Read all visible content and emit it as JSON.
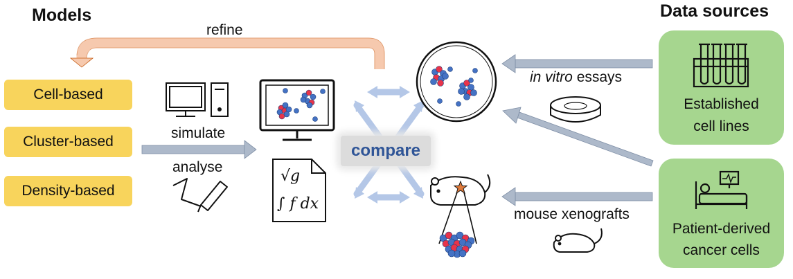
{
  "models": {
    "heading": "Models",
    "items": [
      "Cell-based",
      "Cluster-based",
      "Density-based"
    ]
  },
  "data_sources": {
    "heading": "Data sources",
    "established": {
      "line1": "Established",
      "line2": "cell lines"
    },
    "patient": {
      "line1": "Patient-derived",
      "line2": "cancer cells"
    }
  },
  "flow": {
    "refine": "refine",
    "simulate": "simulate",
    "analyse": "analyse",
    "compare": "compare",
    "in_vitro_italic": "in vitro",
    "in_vitro_rest": " essays",
    "mouse": "mouse xenografts"
  },
  "formulas": {
    "sqrt": "√g",
    "integral": "∫ f dx"
  },
  "colors": {
    "model_box": "#f8d45c",
    "source_box": "#a6d68f",
    "refine_arrow": "#f6c9ae",
    "flow_arrow": "#adb9ca",
    "compare_arrow": "#b4c7e7",
    "compare_text": "#2f5597",
    "cell_blue": "#4472c4",
    "cell_red": "#e8344a"
  }
}
